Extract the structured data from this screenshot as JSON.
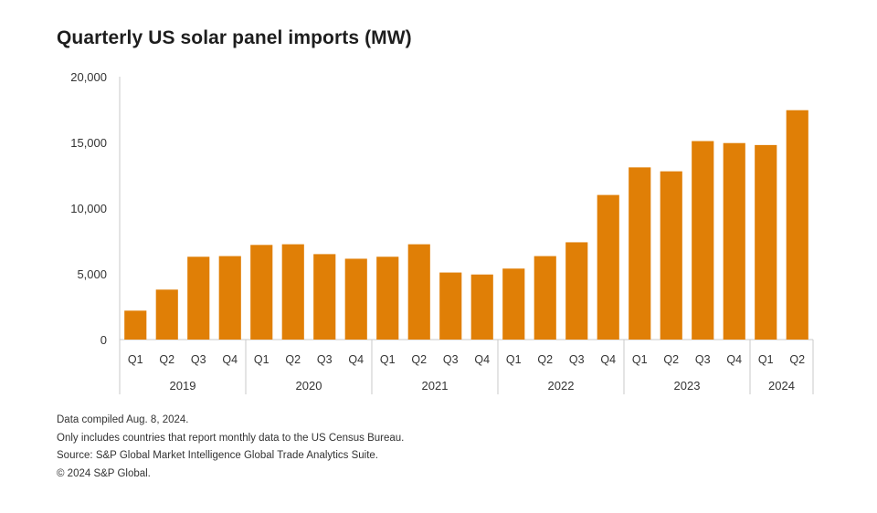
{
  "chart_data": {
    "type": "bar",
    "title": "Quarterly US solar panel imports (MW)",
    "xlabel": "",
    "ylabel": "",
    "ylim": [
      0,
      20000
    ],
    "yticks": [
      0,
      5000,
      10000,
      15000,
      20000
    ],
    "ytick_labels": [
      "0",
      "5,000",
      "10,000",
      "15,000",
      "20,000"
    ],
    "grid": false,
    "bar_color": "#E07F06",
    "years": [
      {
        "label": "2019",
        "quarters": [
          "Q1",
          "Q2",
          "Q3",
          "Q4"
        ]
      },
      {
        "label": "2020",
        "quarters": [
          "Q1",
          "Q2",
          "Q3",
          "Q4"
        ]
      },
      {
        "label": "2021",
        "quarters": [
          "Q1",
          "Q2",
          "Q3",
          "Q4"
        ]
      },
      {
        "label": "2022",
        "quarters": [
          "Q1",
          "Q2",
          "Q3",
          "Q4"
        ]
      },
      {
        "label": "2023",
        "quarters": [
          "Q1",
          "Q2",
          "Q3",
          "Q4"
        ]
      },
      {
        "label": "2024",
        "quarters": [
          "Q1",
          "Q2"
        ]
      }
    ],
    "values": [
      2200,
      3800,
      6300,
      6350,
      7200,
      7250,
      6500,
      6150,
      6300,
      7250,
      5100,
      4950,
      5400,
      6350,
      7400,
      11000,
      13100,
      12800,
      15100,
      14950,
      14800,
      17450
    ]
  },
  "footnotes": [
    "Data compiled Aug. 8, 2024.",
    "Only includes countries that report monthly data to the US Census Bureau.",
    "Source: S&P Global Market Intelligence Global Trade Analytics Suite.",
    "© 2024 S&P Global."
  ]
}
